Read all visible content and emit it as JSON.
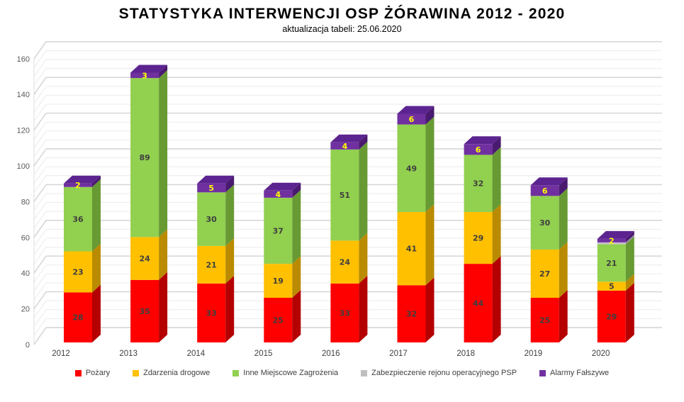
{
  "title": "STATYSTYKA INTERWENCJI OSP ŻÓRAWINA 2012 - 2020",
  "subtitle": "aktualizacja tabeli: 25.06.2020",
  "chart_data": {
    "type": "bar",
    "stacked": true,
    "three_d": true,
    "title": "STATYSTYKA INTERWENCJI OSP ŻÓRAWINA 2012 - 2020",
    "subtitle": "aktualizacja tabeli: 25.06.2020",
    "xlabel": "",
    "ylabel": "",
    "categories": [
      "2012",
      "2013",
      "2014",
      "2015",
      "2016",
      "2017",
      "2018",
      "2019",
      "2020"
    ],
    "series": [
      {
        "name": "Pożary",
        "color": "#FE0000",
        "front": "#FE0000",
        "side": "#B40000",
        "top": "#D40000",
        "values": [
          28,
          35,
          33,
          25,
          33,
          32,
          44,
          25,
          29
        ]
      },
      {
        "name": "Zdarzenia drogowe",
        "color": "#FFC000",
        "front": "#FFC000",
        "side": "#BA8B00",
        "top": "#DFA800",
        "values": [
          23,
          24,
          21,
          19,
          24,
          41,
          29,
          27,
          5
        ]
      },
      {
        "name": "Inne Miejscowe Zagrożenia",
        "color": "#92D050",
        "front": "#92D050",
        "side": "#689A33",
        "top": "#7FB946",
        "values": [
          36,
          89,
          30,
          37,
          51,
          49,
          32,
          30,
          21
        ]
      },
      {
        "name": "Zabezpieczenie rejonu operacyjnego PSP",
        "color": "#BFBFBF",
        "front": "#C6BFD0",
        "side": "#968CA3",
        "top": "#B3AAC0",
        "values": [
          0,
          0,
          0,
          0,
          0,
          0,
          0,
          0,
          1
        ]
      },
      {
        "name": "Alarmy Fałszywe",
        "color": "#7030A0",
        "front": "#7030A0",
        "side": "#4A1A70",
        "top": "#5C2490",
        "values": [
          2,
          3,
          5,
          4,
          4,
          6,
          6,
          6,
          2
        ],
        "label_color": "#FFFF00"
      }
    ],
    "totals": [
      89,
      151,
      89,
      85,
      112,
      128,
      111,
      88,
      58
    ],
    "ylim": [
      0,
      160
    ],
    "yticks": [
      0,
      20,
      40,
      60,
      80,
      100,
      120,
      140,
      160
    ],
    "major_grid_step": 20,
    "minor_grid_step": 5,
    "grid": true,
    "legend_position": "bottom",
    "value_label_color": "#3F3F3F",
    "value_label_min": 2,
    "axis_label_color": "#595959",
    "category_label_color": "#404040",
    "major_grid_color": "#d2d2d2",
    "minor_grid_color": "#ebebeb"
  }
}
